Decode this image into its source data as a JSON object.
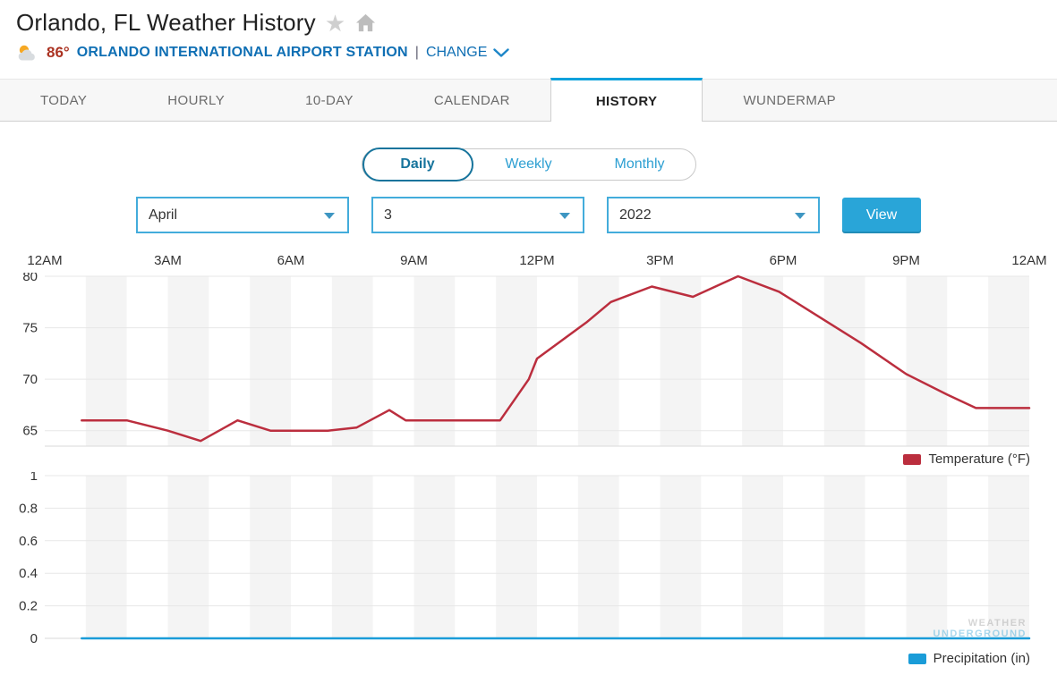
{
  "header": {
    "title": "Orlando, FL Weather History",
    "temperature": "86°",
    "station": "ORLANDO INTERNATIONAL AIRPORT STATION",
    "separator": "|",
    "change_label": "CHANGE"
  },
  "tabs": [
    {
      "label": "TODAY",
      "active": false
    },
    {
      "label": "HOURLY",
      "active": false
    },
    {
      "label": "10-DAY",
      "active": false
    },
    {
      "label": "CALENDAR",
      "active": false
    },
    {
      "label": "HISTORY",
      "active": true
    },
    {
      "label": "WUNDERMAP",
      "active": false
    }
  ],
  "period_toggle": [
    {
      "label": "Daily",
      "selected": true
    },
    {
      "label": "Weekly",
      "selected": false
    },
    {
      "label": "Monthly",
      "selected": false
    }
  ],
  "date_controls": {
    "month": "April",
    "day": "3",
    "year": "2022",
    "view_label": "View"
  },
  "colors": {
    "accent_blue": "#29a5d8",
    "link_blue": "#0f6fb4",
    "active_tab_blue": "#0ba1dc",
    "temperature_red": "#bb2e3e",
    "precipitation_blue": "#1a9cd8"
  },
  "watermark": {
    "line1": "WEATHER",
    "line2": "UNDERGROUND"
  },
  "chart_data": [
    {
      "type": "line",
      "name": "temperature",
      "legend": "Temperature (°F)",
      "x_ticks": [
        "12AM",
        "3AM",
        "6AM",
        "9AM",
        "12PM",
        "3PM",
        "6PM",
        "9PM",
        "12AM"
      ],
      "x_range": [
        0,
        24
      ],
      "ylim": [
        63.5,
        80
      ],
      "y_ticks": [
        65,
        70,
        75,
        80
      ],
      "grid": true,
      "legend_position": "bottom-right",
      "series": [
        {
          "name": "Temperature (°F)",
          "color": "#bb2e3e",
          "points": [
            [
              0.9,
              66
            ],
            [
              2,
              66
            ],
            [
              3,
              65
            ],
            [
              3.8,
              64
            ],
            [
              4.7,
              66
            ],
            [
              5.5,
              65
            ],
            [
              6.9,
              65
            ],
            [
              7.6,
              65.3
            ],
            [
              8.4,
              67
            ],
            [
              8.8,
              66
            ],
            [
              11.1,
              66
            ],
            [
              11.8,
              70
            ],
            [
              12,
              72
            ],
            [
              13.2,
              75.5
            ],
            [
              13.8,
              77.5
            ],
            [
              14.8,
              79
            ],
            [
              15.8,
              78
            ],
            [
              16.9,
              80
            ],
            [
              17.9,
              78.5
            ],
            [
              18.7,
              76.5
            ],
            [
              19.9,
              73.5
            ],
            [
              21,
              70.5
            ],
            [
              22,
              68.5
            ],
            [
              22.7,
              67.2
            ],
            [
              24,
              67.2
            ]
          ]
        }
      ]
    },
    {
      "type": "line",
      "name": "precipitation",
      "legend": "Precipitation (in)",
      "x_ticks": [
        "12AM",
        "3AM",
        "6AM",
        "9AM",
        "12PM",
        "3PM",
        "6PM",
        "9PM",
        "12AM"
      ],
      "x_range": [
        0,
        24
      ],
      "ylim": [
        0,
        1
      ],
      "y_ticks": [
        0,
        0.2,
        0.4,
        0.6,
        0.8,
        1
      ],
      "grid": true,
      "legend_position": "bottom-right",
      "series": [
        {
          "name": "Precipitation (in)",
          "color": "#1a9cd8",
          "points": [
            [
              0.9,
              0
            ],
            [
              24,
              0
            ]
          ]
        }
      ]
    }
  ]
}
